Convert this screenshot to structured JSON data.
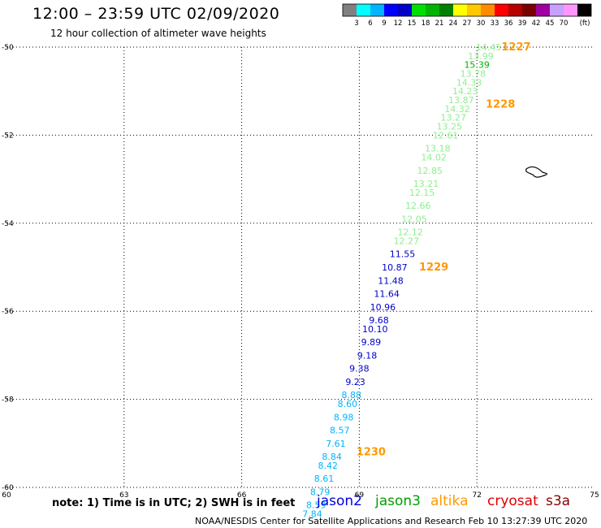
{
  "header": {
    "title": "12:00 – 23:59 UTC 02/09/2020",
    "subtitle": "12 hour collection of altimeter wave heights"
  },
  "colorbar": {
    "labels": [
      "3",
      "6",
      "9",
      "12",
      "15",
      "18",
      "21",
      "24",
      "27",
      "30",
      "33",
      "36",
      "39",
      "42",
      "45",
      "70"
    ],
    "unit": "(ft)",
    "colors": [
      "#808080",
      "#00ffff",
      "#00b4ff",
      "#0000ff",
      "#0000c8",
      "#00e000",
      "#00b400",
      "#008000",
      "#ffff00",
      "#ffc800",
      "#ff8c00",
      "#ff0000",
      "#b40000",
      "#780000",
      "#a000a0",
      "#c8a0ff",
      "#ff96ff",
      "#000000"
    ]
  },
  "footer": {
    "note": "note:  1) Time is in UTC;  2) SWH is in feet",
    "credit": "NOAA/NESDIS Center for Satellite Applications and Research    Feb 10 13:27:39 UTC 2020",
    "satellites": [
      {
        "name": "jason2",
        "color": "#0000e0"
      },
      {
        "name": "jason3",
        "color": "#00a000"
      },
      {
        "name": "altika",
        "color": "#ff9900"
      },
      {
        "name": "cryosat",
        "color": "#dd0000"
      },
      {
        "name": "s3a",
        "color": "#880000"
      }
    ]
  },
  "chart_data": {
    "type": "scatter",
    "title": "",
    "xlabel": "",
    "ylabel": "",
    "xlim": [
      60,
      75
    ],
    "ylim": [
      -60,
      -50
    ],
    "xticks": [
      60,
      63,
      66,
      69,
      72,
      75
    ],
    "yticks": [
      -50,
      -52,
      -54,
      -56,
      -58,
      -60
    ],
    "grid": true,
    "points": [
      {
        "x": 72.3,
        "y": -50.0,
        "label": "14.45",
        "color": "#90ee90"
      },
      {
        "x": 72.1,
        "y": -50.2,
        "label": "13.99",
        "color": "#90ee90"
      },
      {
        "x": 72.0,
        "y": -50.4,
        "label": "15.39",
        "color": "#00b400"
      },
      {
        "x": 71.9,
        "y": -50.6,
        "label": "13.78",
        "color": "#90ee90"
      },
      {
        "x": 71.8,
        "y": -50.8,
        "label": "14.33",
        "color": "#90ee90"
      },
      {
        "x": 71.7,
        "y": -51.0,
        "label": "14.23",
        "color": "#90ee90"
      },
      {
        "x": 71.6,
        "y": -51.2,
        "label": "13.87",
        "color": "#90ee90"
      },
      {
        "x": 71.5,
        "y": -51.4,
        "label": "14.32",
        "color": "#90ee90"
      },
      {
        "x": 71.4,
        "y": -51.6,
        "label": "13.27",
        "color": "#90ee90"
      },
      {
        "x": 71.3,
        "y": -51.8,
        "label": "13.25",
        "color": "#90ee90"
      },
      {
        "x": 71.2,
        "y": -52.0,
        "label": "12.61",
        "color": "#90ee90"
      },
      {
        "x": 71.0,
        "y": -52.3,
        "label": "13.18",
        "color": "#90ee90"
      },
      {
        "x": 70.9,
        "y": -52.5,
        "label": "14.02",
        "color": "#90ee90"
      },
      {
        "x": 70.8,
        "y": -52.8,
        "label": "12.85",
        "color": "#90ee90"
      },
      {
        "x": 70.7,
        "y": -53.1,
        "label": "13.21",
        "color": "#90ee90"
      },
      {
        "x": 70.6,
        "y": -53.3,
        "label": "12.15",
        "color": "#90ee90"
      },
      {
        "x": 70.5,
        "y": -53.6,
        "label": "12.66",
        "color": "#90ee90"
      },
      {
        "x": 70.4,
        "y": -53.9,
        "label": "12.05",
        "color": "#90ee90"
      },
      {
        "x": 70.3,
        "y": -54.2,
        "label": "12.12",
        "color": "#90ee90"
      },
      {
        "x": 70.2,
        "y": -54.4,
        "label": "12.27",
        "color": "#90ee90"
      },
      {
        "x": 70.1,
        "y": -54.7,
        "label": "11.55",
        "color": "#0000c8"
      },
      {
        "x": 69.9,
        "y": -55.0,
        "label": "10.87",
        "color": "#0000c8"
      },
      {
        "x": 69.8,
        "y": -55.3,
        "label": "11.48",
        "color": "#0000c8"
      },
      {
        "x": 69.7,
        "y": -55.6,
        "label": "11.64",
        "color": "#0000c8"
      },
      {
        "x": 69.6,
        "y": -55.9,
        "label": "10.96",
        "color": "#0000c8"
      },
      {
        "x": 69.5,
        "y": -56.2,
        "label": "9.68",
        "color": "#0000c8"
      },
      {
        "x": 69.4,
        "y": -56.4,
        "label": "10.10",
        "color": "#0000c8"
      },
      {
        "x": 69.3,
        "y": -56.7,
        "label": "9.89",
        "color": "#0000c8"
      },
      {
        "x": 69.2,
        "y": -57.0,
        "label": "9.18",
        "color": "#0000c8"
      },
      {
        "x": 69.0,
        "y": -57.3,
        "label": "9.38",
        "color": "#0000c8"
      },
      {
        "x": 68.9,
        "y": -57.6,
        "label": "9.23",
        "color": "#0000c8"
      },
      {
        "x": 68.8,
        "y": -57.9,
        "label": "8.88",
        "color": "#00b4ff"
      },
      {
        "x": 68.7,
        "y": -58.1,
        "label": "8.60",
        "color": "#00b4ff"
      },
      {
        "x": 68.6,
        "y": -58.4,
        "label": "8.98",
        "color": "#00b4ff"
      },
      {
        "x": 68.5,
        "y": -58.7,
        "label": "8.57",
        "color": "#00b4ff"
      },
      {
        "x": 68.4,
        "y": -59.0,
        "label": "7.61",
        "color": "#00b4ff"
      },
      {
        "x": 68.3,
        "y": -59.3,
        "label": "8.84",
        "color": "#00b4ff"
      },
      {
        "x": 68.2,
        "y": -59.5,
        "label": "8.42",
        "color": "#00b4ff"
      },
      {
        "x": 68.1,
        "y": -59.8,
        "label": "8.61",
        "color": "#00b4ff"
      },
      {
        "x": 68.0,
        "y": -60.1,
        "label": "8.79",
        "color": "#00b4ff"
      },
      {
        "x": 67.9,
        "y": -60.4,
        "label": "8.59",
        "color": "#00b4ff"
      },
      {
        "x": 67.8,
        "y": -60.6,
        "label": "7.84",
        "color": "#00b4ff"
      }
    ],
    "time_labels": [
      {
        "x": 73.0,
        "y": -50.0,
        "label": "1227"
      },
      {
        "x": 72.6,
        "y": -51.3,
        "label": "1228"
      },
      {
        "x": 70.9,
        "y": -55.0,
        "label": "1229"
      },
      {
        "x": 69.3,
        "y": -59.2,
        "label": "1230"
      }
    ]
  }
}
